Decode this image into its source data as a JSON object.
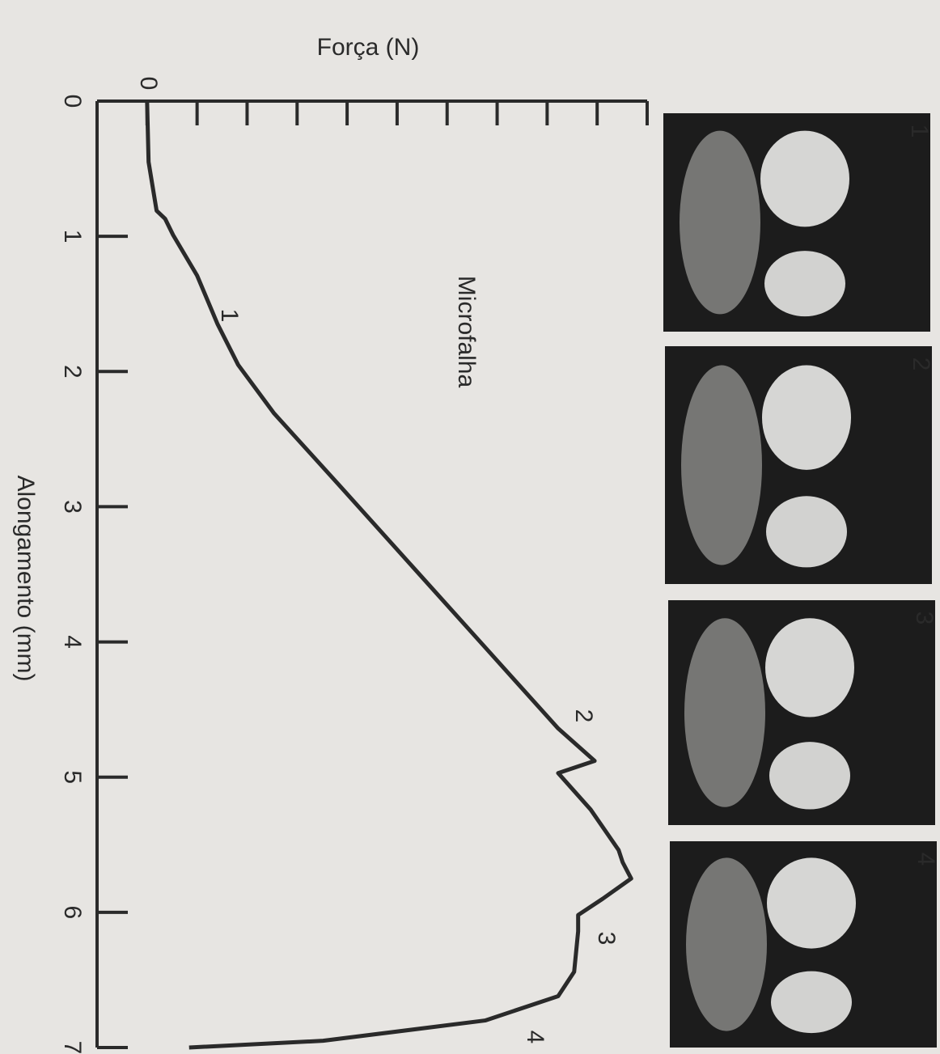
{
  "chart_data": {
    "type": "line",
    "title": "Microfalha",
    "x_label": "Alongamento (mm)",
    "y_label": "Força (N)",
    "x": [
      0,
      0.45,
      0.63,
      0.81,
      0.87,
      0.99,
      1.29,
      1.65,
      1.95,
      2.31,
      2.84,
      3.44,
      4.04,
      4.64,
      4.88,
      4.97,
      5.24,
      5.54,
      5.63,
      5.75,
      5.9,
      6.02,
      6.14,
      6.44,
      6.62,
      6.8,
      6.95,
      7.0
    ],
    "series": [
      {
        "color": "#2a2a2a",
        "values": [
          0,
          0.03,
          0.11,
          0.19,
          0.36,
          0.52,
          1.0,
          1.41,
          1.82,
          2.54,
          3.84,
          5.3,
          6.76,
          8.22,
          8.95,
          8.22,
          8.87,
          9.43,
          9.51,
          9.68,
          9.11,
          8.62,
          8.62,
          8.54,
          8.22,
          6.76,
          3.52,
          0.84
        ]
      }
    ],
    "xlim": [
      0,
      7
    ],
    "xticks": [
      0,
      1,
      2,
      3,
      4,
      5,
      6,
      7
    ],
    "ylim": [
      -1,
      10
    ],
    "yticks": [
      {
        "value": 0,
        "label": "0"
      },
      {
        "value": 1,
        "label": null
      },
      {
        "value": 2,
        "label": null
      },
      {
        "value": 3,
        "label": null
      },
      {
        "value": 4,
        "label": null
      },
      {
        "value": 5,
        "label": null
      },
      {
        "value": 6,
        "label": null
      },
      {
        "value": 7,
        "label": null
      },
      {
        "value": 8,
        "label": null
      },
      {
        "value": 9,
        "label": null
      },
      {
        "value": 10,
        "label": null
      }
    ],
    "annotations": [
      "1",
      "2",
      "3",
      "4"
    ],
    "panels": [
      "1",
      "2",
      "3",
      "4"
    ]
  }
}
